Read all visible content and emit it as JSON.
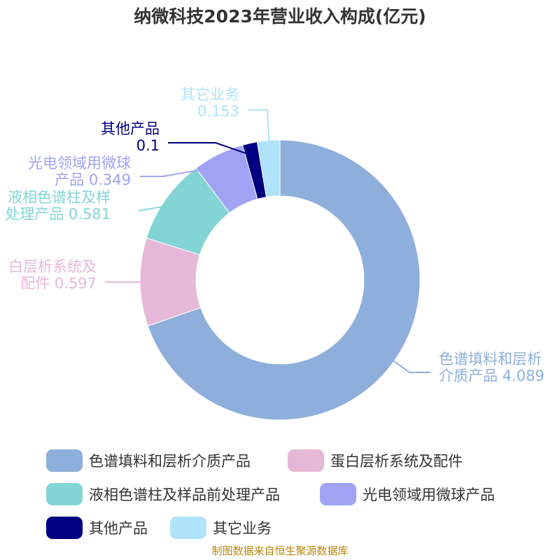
{
  "title": "纳微科技2023年营业收入构成(亿元)",
  "source": "制图数据来自恒生聚源数据库",
  "chart_data": {
    "type": "pie",
    "title": "纳微科技2023年营业收入构成(亿元)",
    "donut": true,
    "legend_position": "bottom",
    "slices": [
      {
        "label": "色谱填料和层析介质产品",
        "label_lines": [
          "色谱填料和层析",
          "介质产品 4.089"
        ],
        "value": 4.089,
        "color": "#8eaedb"
      },
      {
        "label": "蛋白层析系统及配件",
        "label_lines": [
          "白层析系统及",
          "配件 0.597"
        ],
        "value": 0.597,
        "color": "#e6b8d7"
      },
      {
        "label": "液相色谱柱及样品前处理产品",
        "label_lines": [
          "液相色谱柱及样",
          "处理产品 0.581"
        ],
        "value": 0.581,
        "color": "#83d5d5"
      },
      {
        "label": "光电领域用微球产品",
        "label_lines": [
          "光电领域用微球",
          "产品 0.349"
        ],
        "value": 0.349,
        "color": "#a0a3f4"
      },
      {
        "label": "其他产品",
        "label_lines": [
          "其他产品",
          "0.1"
        ],
        "value": 0.1,
        "color": "#000080"
      },
      {
        "label": "其它业务",
        "label_lines": [
          "其它业务",
          "0.153"
        ],
        "value": 0.153,
        "color": "#aee3fb"
      }
    ]
  }
}
